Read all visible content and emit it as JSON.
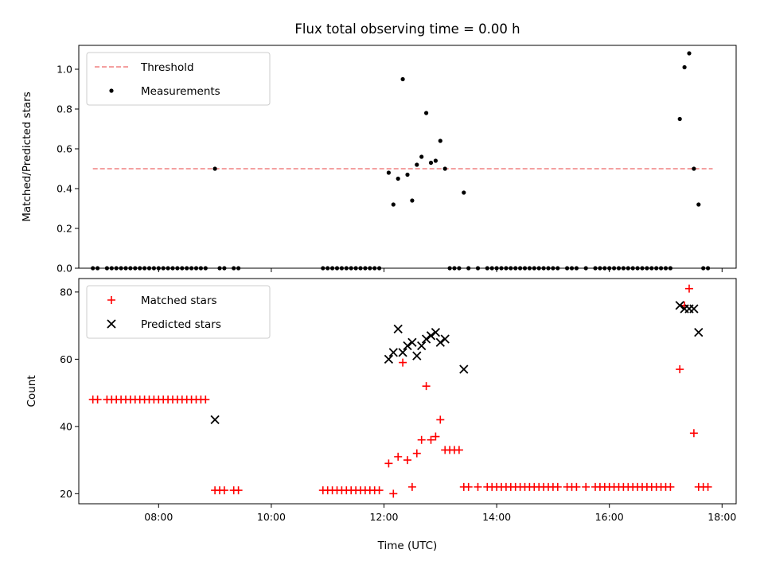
{
  "chart_data": [
    {
      "type": "scatter",
      "title": "Flux total observing time = 0.00 h",
      "xlabel": "",
      "ylabel": "Matched/Predicted stars",
      "xlim": [
        "06:35",
        "18:15"
      ],
      "ylim": [
        0,
        1.12
      ],
      "yticks": [
        "0.0",
        "0.2",
        "0.4",
        "0.6",
        "0.8",
        "1.0"
      ],
      "legend_position": "top-left",
      "threshold": {
        "name": "Threshold",
        "y": 0.5,
        "x_range": [
          "06:50",
          "17:50"
        ],
        "color": "#f08080",
        "style": "dashed"
      },
      "series": [
        {
          "name": "Measurements",
          "color": "#000000",
          "marker": "dot",
          "x": [
            "06:50",
            "06:55",
            "07:05",
            "07:10",
            "07:15",
            "07:20",
            "07:25",
            "07:30",
            "07:35",
            "07:40",
            "07:45",
            "07:50",
            "07:55",
            "08:00",
            "08:05",
            "08:10",
            "08:15",
            "08:20",
            "08:25",
            "08:30",
            "08:35",
            "08:40",
            "08:45",
            "08:50",
            "09:00",
            "09:05",
            "09:10",
            "09:20",
            "09:25",
            "10:55",
            "11:00",
            "11:05",
            "11:10",
            "11:15",
            "11:20",
            "11:25",
            "11:30",
            "11:35",
            "11:40",
            "11:45",
            "11:50",
            "11:55",
            "12:05",
            "12:10",
            "12:15",
            "12:20",
            "12:25",
            "12:30",
            "12:35",
            "12:40",
            "12:45",
            "12:50",
            "12:55",
            "13:00",
            "13:05",
            "13:10",
            "13:15",
            "13:20",
            "13:25",
            "13:30",
            "13:40",
            "13:50",
            "13:55",
            "14:00",
            "14:05",
            "14:10",
            "14:15",
            "14:20",
            "14:25",
            "14:30",
            "14:35",
            "14:40",
            "14:45",
            "14:50",
            "14:55",
            "15:00",
            "15:05",
            "15:15",
            "15:20",
            "15:25",
            "15:35",
            "15:45",
            "15:50",
            "15:55",
            "16:00",
            "16:05",
            "16:10",
            "16:15",
            "16:20",
            "16:25",
            "16:30",
            "16:35",
            "16:40",
            "16:45",
            "16:50",
            "16:55",
            "17:00",
            "17:05",
            "17:15",
            "17:20",
            "17:25",
            "17:30",
            "17:35",
            "17:40",
            "17:45"
          ],
          "y": [
            0,
            0,
            0,
            0,
            0,
            0,
            0,
            0,
            0,
            0,
            0,
            0,
            0,
            0,
            0,
            0,
            0,
            0,
            0,
            0,
            0,
            0,
            0,
            0,
            0.5,
            0,
            0,
            0,
            0,
            0,
            0,
            0,
            0,
            0,
            0,
            0,
            0,
            0,
            0,
            0,
            0,
            0,
            0.48,
            0.32,
            0.45,
            0.95,
            0.47,
            0.34,
            0.52,
            0.56,
            0.78,
            0.53,
            0.54,
            0.64,
            0.5,
            0,
            0,
            0,
            0.38,
            0,
            0,
            0,
            0,
            0,
            0,
            0,
            0,
            0,
            0,
            0,
            0,
            0,
            0,
            0,
            0,
            0,
            0,
            0,
            0,
            0,
            0,
            0,
            0,
            0,
            0,
            0,
            0,
            0,
            0,
            0,
            0,
            0,
            0,
            0,
            0,
            0,
            0,
            0,
            0.75,
            1.01,
            1.08,
            0.5,
            0.32,
            0,
            0
          ]
        }
      ]
    },
    {
      "type": "scatter",
      "title": "",
      "xlabel": "Time (UTC)",
      "ylabel": "Count",
      "xlim": [
        "06:35",
        "18:15"
      ],
      "ylim": [
        17,
        84
      ],
      "xticks": [
        "08:00",
        "10:00",
        "12:00",
        "14:00",
        "16:00",
        "18:00"
      ],
      "yticks": [
        "20",
        "40",
        "60",
        "80"
      ],
      "legend_position": "top-left",
      "series": [
        {
          "name": "Matched stars",
          "color": "#ff0000",
          "marker": "plus",
          "x": [
            "06:50",
            "06:55",
            "07:05",
            "07:10",
            "07:15",
            "07:20",
            "07:25",
            "07:30",
            "07:35",
            "07:40",
            "07:45",
            "07:50",
            "07:55",
            "08:00",
            "08:05",
            "08:10",
            "08:15",
            "08:20",
            "08:25",
            "08:30",
            "08:35",
            "08:40",
            "08:45",
            "08:50",
            "09:00",
            "09:05",
            "09:10",
            "09:20",
            "09:25",
            "10:55",
            "11:00",
            "11:05",
            "11:10",
            "11:15",
            "11:20",
            "11:25",
            "11:30",
            "11:35",
            "11:40",
            "11:45",
            "11:50",
            "11:55",
            "12:05",
            "12:10",
            "12:15",
            "12:20",
            "12:25",
            "12:30",
            "12:35",
            "12:40",
            "12:45",
            "12:50",
            "12:55",
            "13:00",
            "13:05",
            "13:10",
            "13:15",
            "13:20",
            "13:25",
            "13:30",
            "13:40",
            "13:50",
            "13:55",
            "14:00",
            "14:05",
            "14:10",
            "14:15",
            "14:20",
            "14:25",
            "14:30",
            "14:35",
            "14:40",
            "14:45",
            "14:50",
            "14:55",
            "15:00",
            "15:05",
            "15:15",
            "15:20",
            "15:25",
            "15:35",
            "15:45",
            "15:50",
            "15:55",
            "16:00",
            "16:05",
            "16:10",
            "16:15",
            "16:20",
            "16:25",
            "16:30",
            "16:35",
            "16:40",
            "16:45",
            "16:50",
            "16:55",
            "17:00",
            "17:05",
            "17:15",
            "17:20",
            "17:25",
            "17:30",
            "17:35",
            "17:40",
            "17:45"
          ],
          "y": [
            48,
            48,
            48,
            48,
            48,
            48,
            48,
            48,
            48,
            48,
            48,
            48,
            48,
            48,
            48,
            48,
            48,
            48,
            48,
            48,
            48,
            48,
            48,
            48,
            21,
            21,
            21,
            21,
            21,
            21,
            21,
            21,
            21,
            21,
            21,
            21,
            21,
            21,
            21,
            21,
            21,
            21,
            29,
            20,
            31,
            59,
            30,
            22,
            32,
            36,
            52,
            36,
            37,
            42,
            33,
            33,
            33,
            33,
            22,
            22,
            22,
            22,
            22,
            22,
            22,
            22,
            22,
            22,
            22,
            22,
            22,
            22,
            22,
            22,
            22,
            22,
            22,
            22,
            22,
            22,
            22,
            22,
            22,
            22,
            22,
            22,
            22,
            22,
            22,
            22,
            22,
            22,
            22,
            22,
            22,
            22,
            22,
            22,
            57,
            76,
            81,
            38,
            22,
            22,
            22
          ]
        },
        {
          "name": "Predicted stars",
          "color": "#000000",
          "marker": "x",
          "x": [
            "09:00",
            "12:05",
            "12:10",
            "12:15",
            "12:20",
            "12:25",
            "12:30",
            "12:35",
            "12:40",
            "12:45",
            "12:50",
            "12:55",
            "13:00",
            "13:05",
            "13:25",
            "17:15",
            "17:20",
            "17:25",
            "17:30",
            "17:35"
          ],
          "y": [
            42,
            60,
            62,
            69,
            62,
            64,
            65,
            61,
            64,
            66,
            67,
            68,
            65,
            66,
            57,
            76,
            75,
            75,
            75,
            68
          ]
        }
      ]
    }
  ]
}
